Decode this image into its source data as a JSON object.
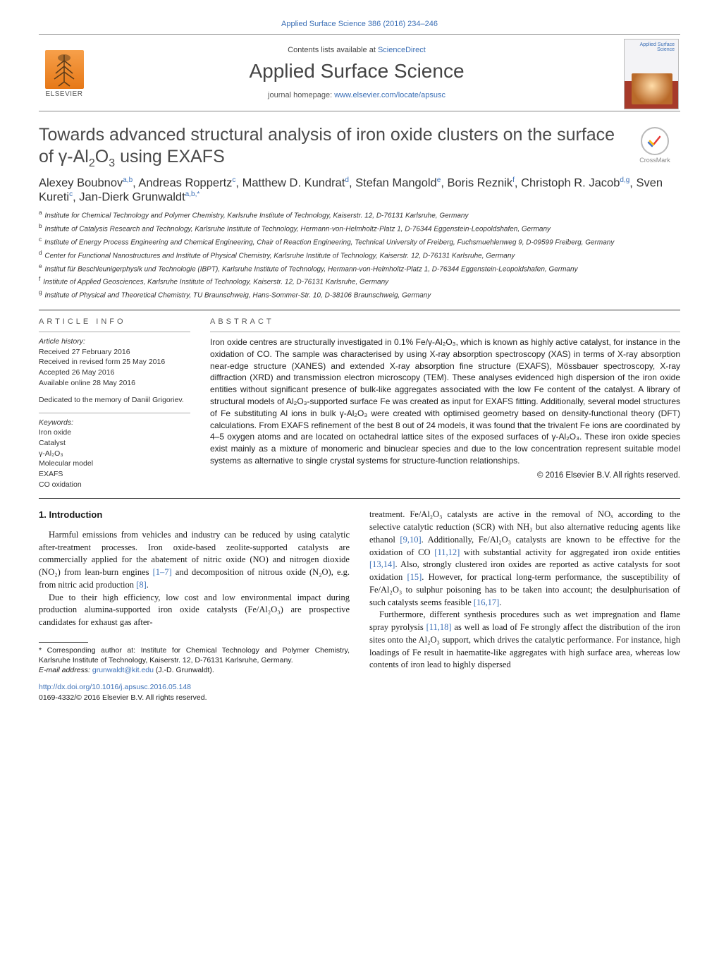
{
  "topCitation": "Applied Surface Science 386 (2016) 234–246",
  "masthead": {
    "publisher": "ELSEVIER",
    "contentsPrefix": "Contents lists available at ",
    "contentsLink": "ScienceDirect",
    "journal": "Applied Surface Science",
    "homepagePrefix": "journal homepage: ",
    "homepageUrl": "www.elsevier.com/locate/apsusc",
    "coverJournalLabel": "Applied Surface Science"
  },
  "crossmark": "CrossMark",
  "title": "Towards advanced structural analysis of iron oxide clusters on the surface of γ-Al₂O₃ using EXAFS",
  "titleParts": {
    "pre": "Towards advanced structural analysis of iron oxide clusters on the surface of γ-Al",
    "sub1": "2",
    "mid1": "O",
    "sub2": "3",
    "post": " using EXAFS"
  },
  "authors": [
    {
      "name": "Alexey Boubnov",
      "affs": "a,b"
    },
    {
      "name": "Andreas Roppertz",
      "affs": "c"
    },
    {
      "name": "Matthew D. Kundrat",
      "affs": "d"
    },
    {
      "name": "Stefan Mangold",
      "affs": "e"
    },
    {
      "name": "Boris Reznik",
      "affs": "f"
    },
    {
      "name": "Christoph R. Jacob",
      "affs": "d,g"
    },
    {
      "name": "Sven Kureti",
      "affs": "c"
    },
    {
      "name": "Jan-Dierk Grunwaldt",
      "affs": "a,b,*"
    }
  ],
  "affiliations": [
    {
      "key": "a",
      "text": "Institute for Chemical Technology and Polymer Chemistry, Karlsruhe Institute of Technology, Kaiserstr. 12, D-76131 Karlsruhe, Germany"
    },
    {
      "key": "b",
      "text": "Institute of Catalysis Research and Technology, Karlsruhe Institute of Technology, Hermann-von-Helmholtz-Platz 1, D-76344 Eggenstein-Leopoldshafen, Germany"
    },
    {
      "key": "c",
      "text": "Institute of Energy Process Engineering and Chemical Engineering, Chair of Reaction Engineering, Technical University of Freiberg, Fuchsmuehlenweg 9, D-09599 Freiberg, Germany"
    },
    {
      "key": "d",
      "text": "Center for Functional Nanostructures and Institute of Physical Chemistry, Karlsruhe Institute of Technology, Kaiserstr. 12, D-76131 Karlsruhe, Germany"
    },
    {
      "key": "e",
      "text": "Institut für Beschleunigerphysik und Technologie (IBPT), Karlsruhe Institute of Technology, Hermann-von-Helmholtz-Platz 1, D-76344 Eggenstein-Leopoldshafen, Germany"
    },
    {
      "key": "f",
      "text": "Institute of Applied Geosciences, Karlsruhe Institute of Technology, Kaiserstr. 12, D-76131 Karlsruhe, Germany"
    },
    {
      "key": "g",
      "text": "Institute of Physical and Theoretical Chemistry, TU Braunschweig, Hans-Sommer-Str. 10, D-38106 Braunschweig, Germany"
    }
  ],
  "articleInfo": {
    "heading": "article info",
    "historyLabel": "Article history:",
    "history": [
      "Received 27 February 2016",
      "Received in revised form 25 May 2016",
      "Accepted 26 May 2016",
      "Available online 28 May 2016"
    ],
    "dedication": "Dedicated to the memory of Daniil Grigoriev.",
    "keywordsLabel": "Keywords:",
    "keywords": [
      "Iron oxide",
      "Catalyst",
      "γ-Al₂O₃",
      "Molecular model",
      "EXAFS",
      "CO oxidation"
    ]
  },
  "abstract": {
    "heading": "abstract",
    "text": "Iron oxide centres are structurally investigated in 0.1% Fe/γ-Al₂O₃, which is known as highly active catalyst, for instance in the oxidation of CO. The sample was characterised by using X-ray absorption spectroscopy (XAS) in terms of X-ray absorption near-edge structure (XANES) and extended X-ray absorption fine structure (EXAFS), Mössbauer spectroscopy, X-ray diffraction (XRD) and transmission electron microscopy (TEM). These analyses evidenced high dispersion of the iron oxide entities without significant presence of bulk-like aggregates associated with the low Fe content of the catalyst. A library of structural models of Al₂O₃-supported surface Fe was created as input for EXAFS fitting. Additionally, several model structures of Fe substituting Al ions in bulk γ-Al₂O₃ were created with optimised geometry based on density-functional theory (DFT) calculations. From EXAFS refinement of the best 8 out of 24 models, it was found that the trivalent Fe ions are coordinated by 4–5 oxygen atoms and are located on octahedral lattice sites of the exposed surfaces of γ-Al₂O₃. These iron oxide species exist mainly as a mixture of monomeric and binuclear species and due to the low concentration represent suitable model systems as alternative to single crystal systems for structure-function relationships.",
    "copyright": "© 2016 Elsevier B.V. All rights reserved."
  },
  "intro": {
    "heading": "1. Introduction",
    "p1a": "Harmful emissions from vehicles and industry can be reduced by using catalytic after-treatment processes. Iron oxide-based zeolite-supported catalysts are commercially applied for the abatement of nitric oxide (NO) and nitrogen dioxide (NO₂) from lean-burn engines ",
    "ref1": "[1–7]",
    "p1b": " and decomposition of nitrous oxide (N₂O), e.g. from nitric acid production ",
    "ref2": "[8]",
    "p1c": ".",
    "p2": "Due to their high efficiency, low cost and low environmental impact during production alumina-supported iron oxide catalysts (Fe/Al₂O₃) are prospective candidates for exhaust gas after-",
    "p3a": "treatment. Fe/Al₂O₃ catalysts are active in the removal of NOₓ according to the selective catalytic reduction (SCR) with NH₃ but also alternative reducing agents like ethanol ",
    "ref3": "[9,10]",
    "p3b": ". Additionally, Fe/Al₂O₃ catalysts are known to be effective for the oxidation of CO ",
    "ref4": "[11,12]",
    "p3c": " with substantial activity for aggregated iron oxide entities ",
    "ref5": "[13,14]",
    "p3d": ". Also, strongly clustered iron oxides are reported as active catalysts for soot oxidation ",
    "ref6": "[15]",
    "p3e": ". However, for practical long-term performance, the susceptibility of Fe/Al₂O₃ to sulphur poisoning has to be taken into account; the desulphurisation of such catalysts seems feasible ",
    "ref7": "[16,17]",
    "p3f": ".",
    "p4a": "Furthermore, different synthesis procedures such as wet impregnation and flame spray pyrolysis ",
    "ref8": "[11,18]",
    "p4b": " as well as load of Fe strongly affect the distribution of the iron sites onto the Al₂O₃ support, which drives the catalytic performance. For instance, high loadings of Fe result in haematite-like aggregates with high surface area, whereas low contents of iron lead to highly dispersed"
  },
  "footnote": {
    "corrLabel": "* Corresponding author at: Institute for Chemical Technology and Polymer Chemistry, Karlsruhe Institute of Technology, Kaiserstr. 12, D-76131 Karlsruhe, Germany.",
    "emailLabel": "E-mail address: ",
    "email": "grunwaldt@kit.edu",
    "emailSuffix": " (J.-D. Grunwaldt)."
  },
  "doi": {
    "url": "http://dx.doi.org/10.1016/j.apsusc.2016.05.148",
    "issn": "0169-4332/© 2016 Elsevier B.V. All rights reserved."
  },
  "colors": {
    "link": "#3b6fb6",
    "text": "#1a1a1a",
    "elsevierOrange1": "#f7a04a",
    "elsevierOrange2": "#e67817",
    "coverRed": "#a63a2a",
    "ruleDark": "#333333",
    "ruleLight": "#aaaaaa"
  },
  "typography": {
    "bodyFont": "Georgia, Times New Roman, serif",
    "sansFont": "Arial, sans-serif",
    "titleSizePt": 19,
    "journalSizePt": 21,
    "authorSizePt": 12,
    "bodySizePt": 9.5,
    "abstractSizePt": 9,
    "metaSizePt": 8
  }
}
